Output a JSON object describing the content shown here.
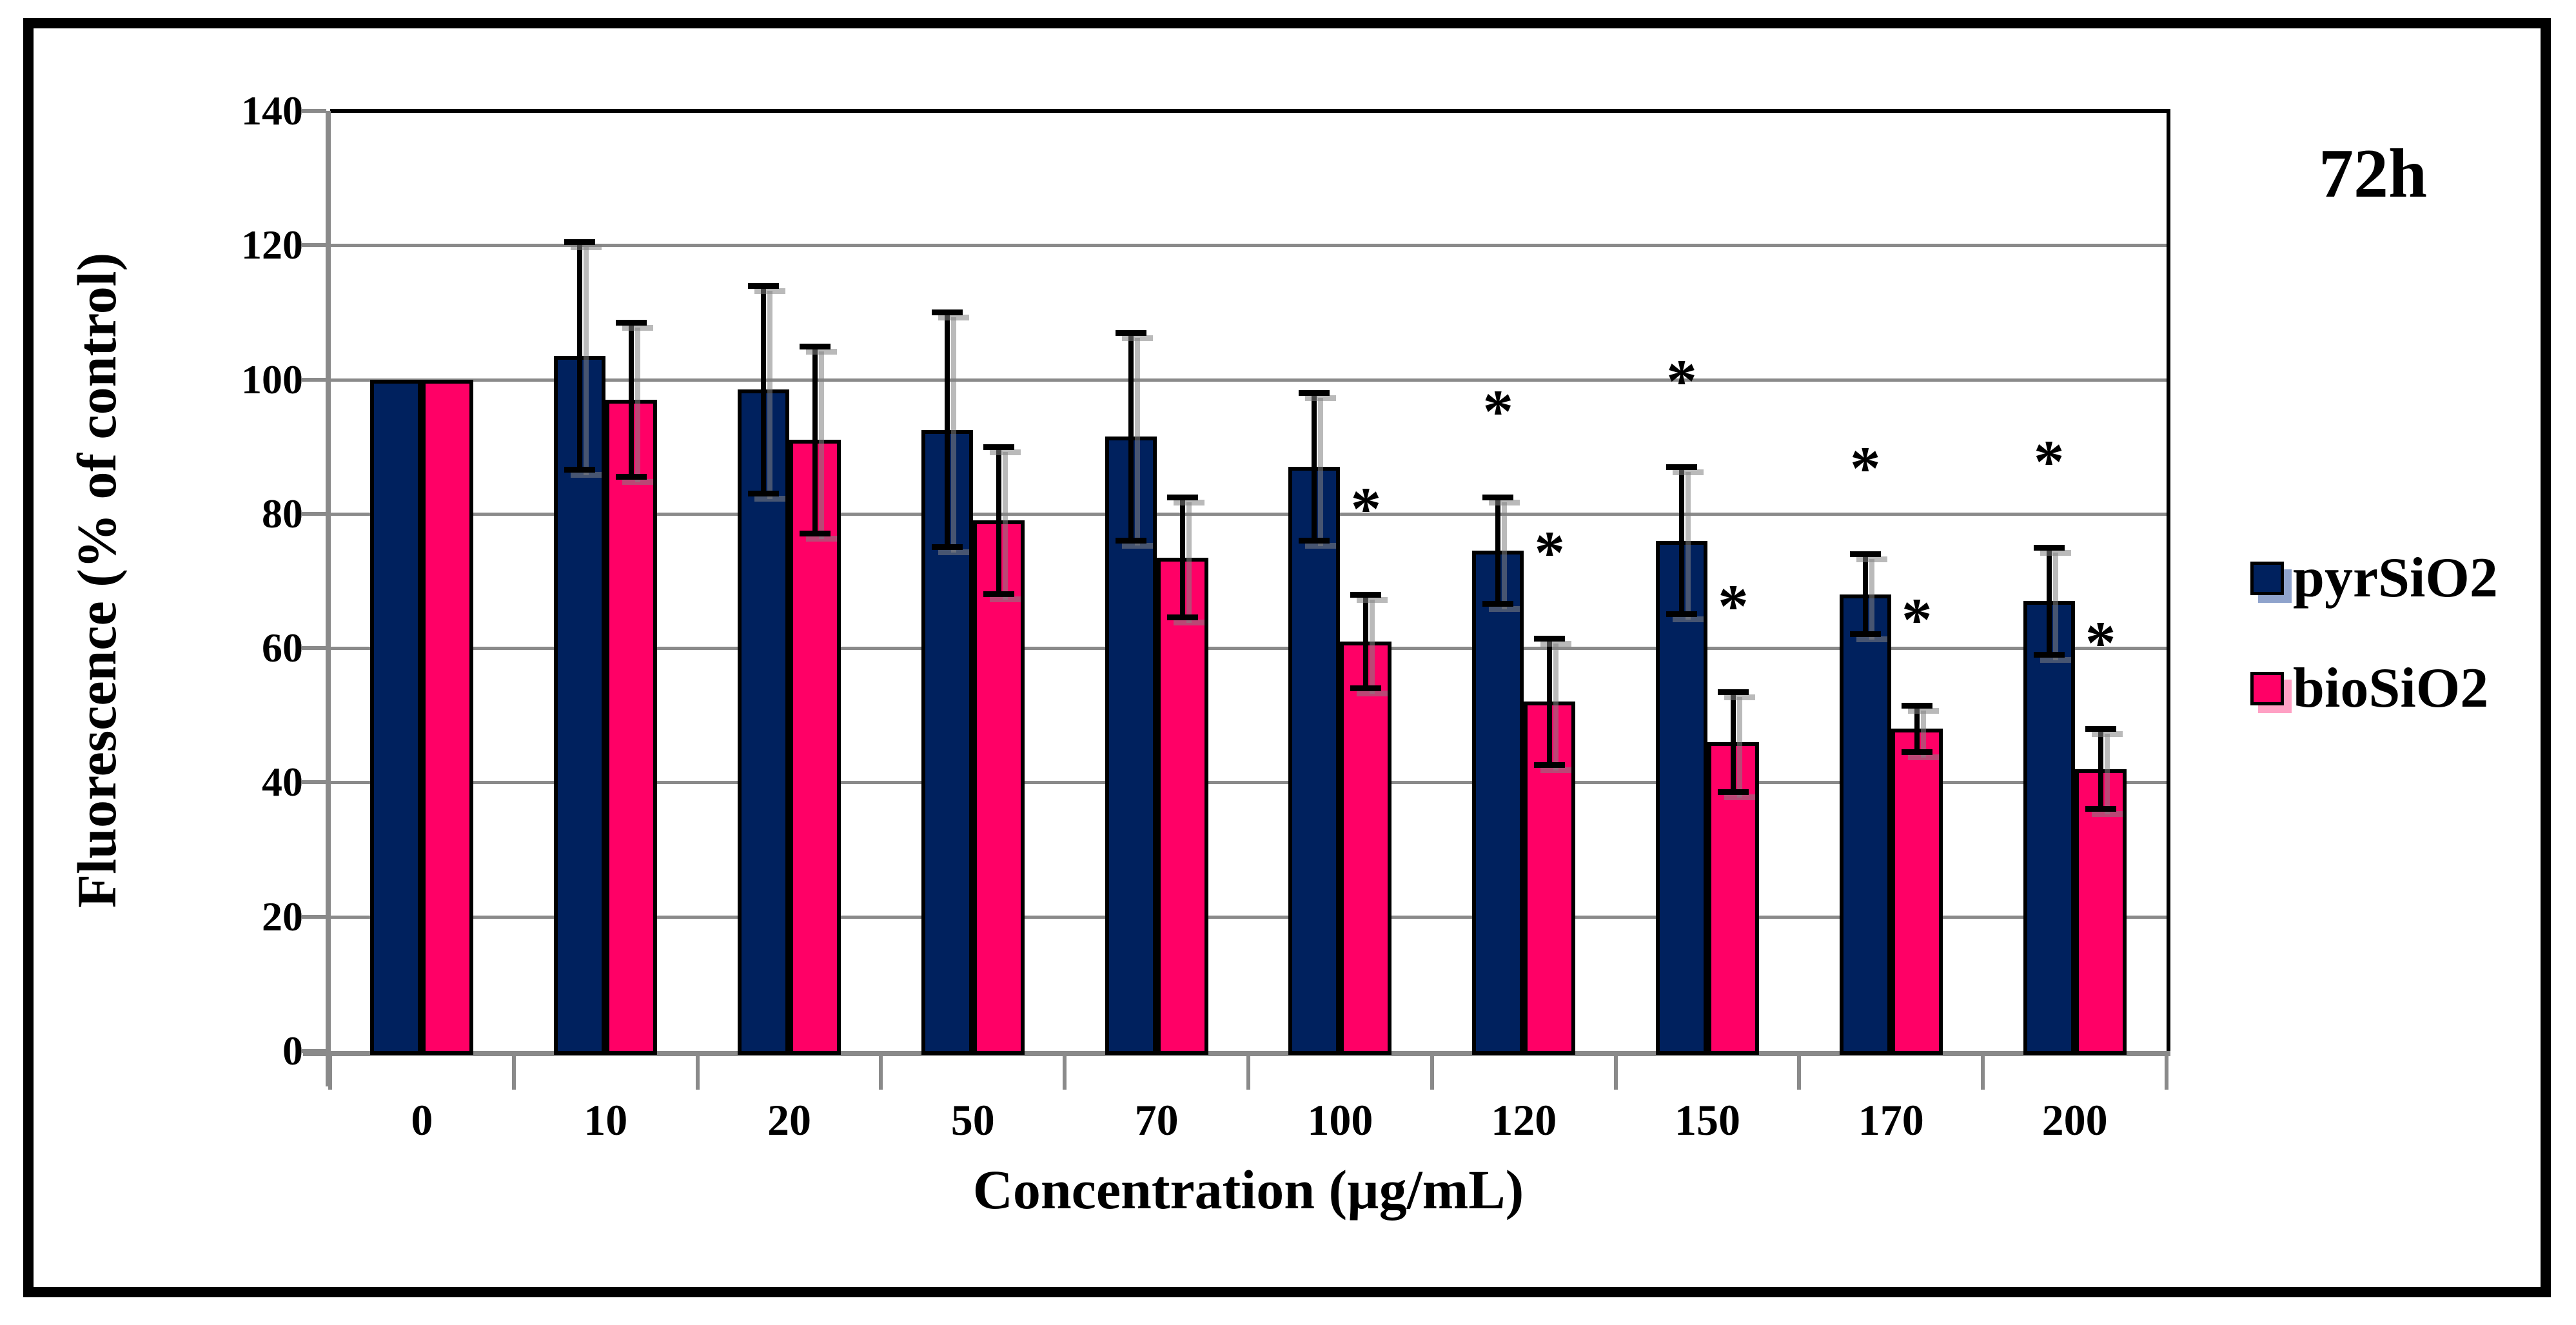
{
  "time_label": "72h",
  "chart_data": {
    "type": "bar",
    "title": "",
    "xlabel": "Concentration (µg/mL)",
    "ylabel": "Fluorescence (% of control)",
    "ylim": [
      0,
      140
    ],
    "yticks": [
      0,
      20,
      40,
      60,
      80,
      100,
      120,
      140
    ],
    "grid": true,
    "legend_position": "right",
    "significance_marker": "*",
    "categories": [
      "0",
      "10",
      "20",
      "50",
      "70",
      "100",
      "120",
      "150",
      "170",
      "200"
    ],
    "series": [
      {
        "name": "pyrSiO2",
        "color": "#00215E",
        "shadow_color": "#8FA3CC",
        "values": [
          100,
          103.5,
          98.5,
          92.5,
          91.5,
          87,
          74.5,
          76,
          68,
          67
        ],
        "errors": [
          0,
          17,
          15.5,
          17.5,
          15.5,
          11,
          8,
          11,
          6,
          8
        ],
        "significant": [
          false,
          false,
          false,
          false,
          false,
          false,
          true,
          true,
          true,
          true
        ]
      },
      {
        "name": "bioSiO2",
        "color": "#FF0066",
        "shadow_color": "#FFA0C4",
        "values": [
          100,
          97,
          91,
          79,
          73.5,
          61,
          52,
          46,
          48,
          42
        ],
        "errors": [
          0,
          11.5,
          14,
          11,
          9,
          7,
          9.5,
          7.5,
          3.5,
          6
        ],
        "significant": [
          false,
          false,
          false,
          false,
          false,
          true,
          true,
          true,
          true,
          true
        ]
      }
    ]
  }
}
